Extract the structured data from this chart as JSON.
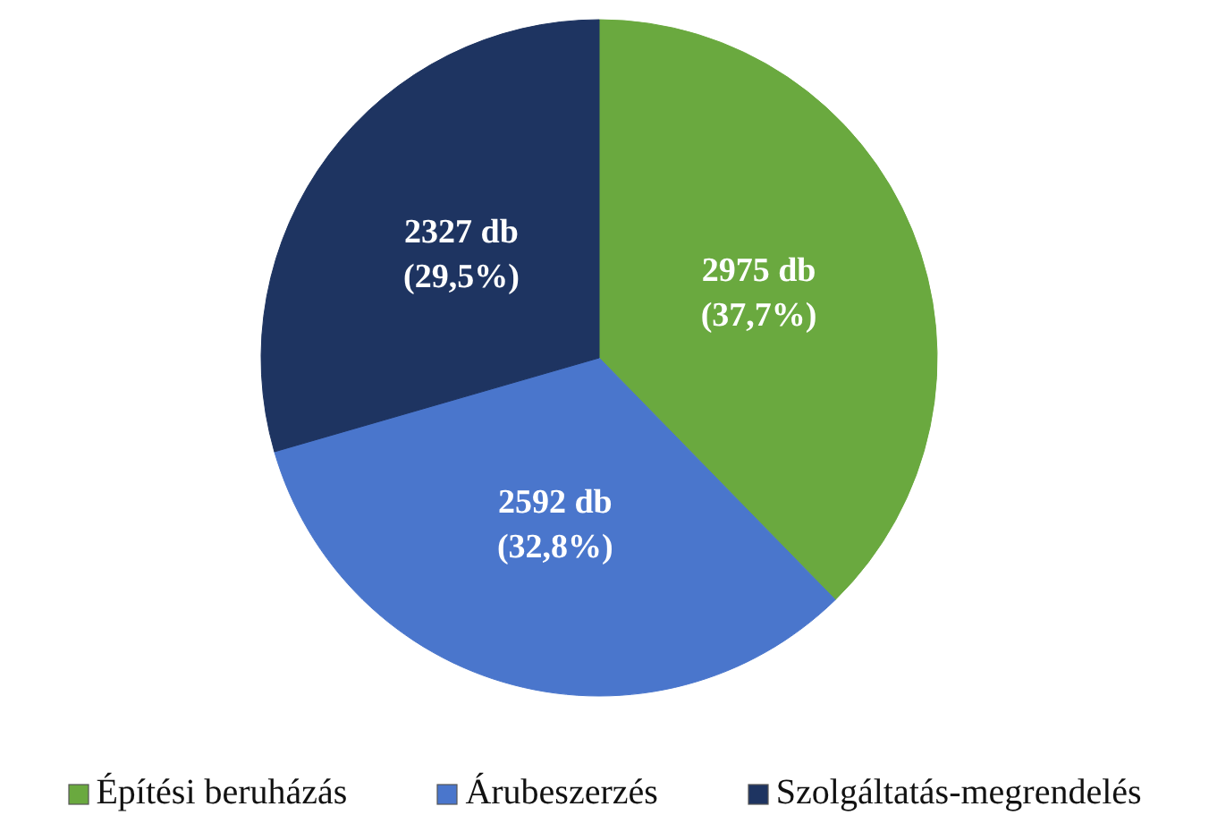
{
  "chart_data": {
    "type": "pie",
    "categories": [
      "Építési beruházás",
      "Árubeszerzés",
      "Szolgáltatás-megrendelés"
    ],
    "values": [
      2975,
      2592,
      2327
    ],
    "colors": [
      "#6aa93f",
      "#4a76cc",
      "#1e3461"
    ],
    "value_labels": [
      "2975 db\n(37,7%)",
      "2592 db\n(32,8%)",
      "2327 db\n(29,5%)"
    ],
    "legend": "bottom"
  }
}
